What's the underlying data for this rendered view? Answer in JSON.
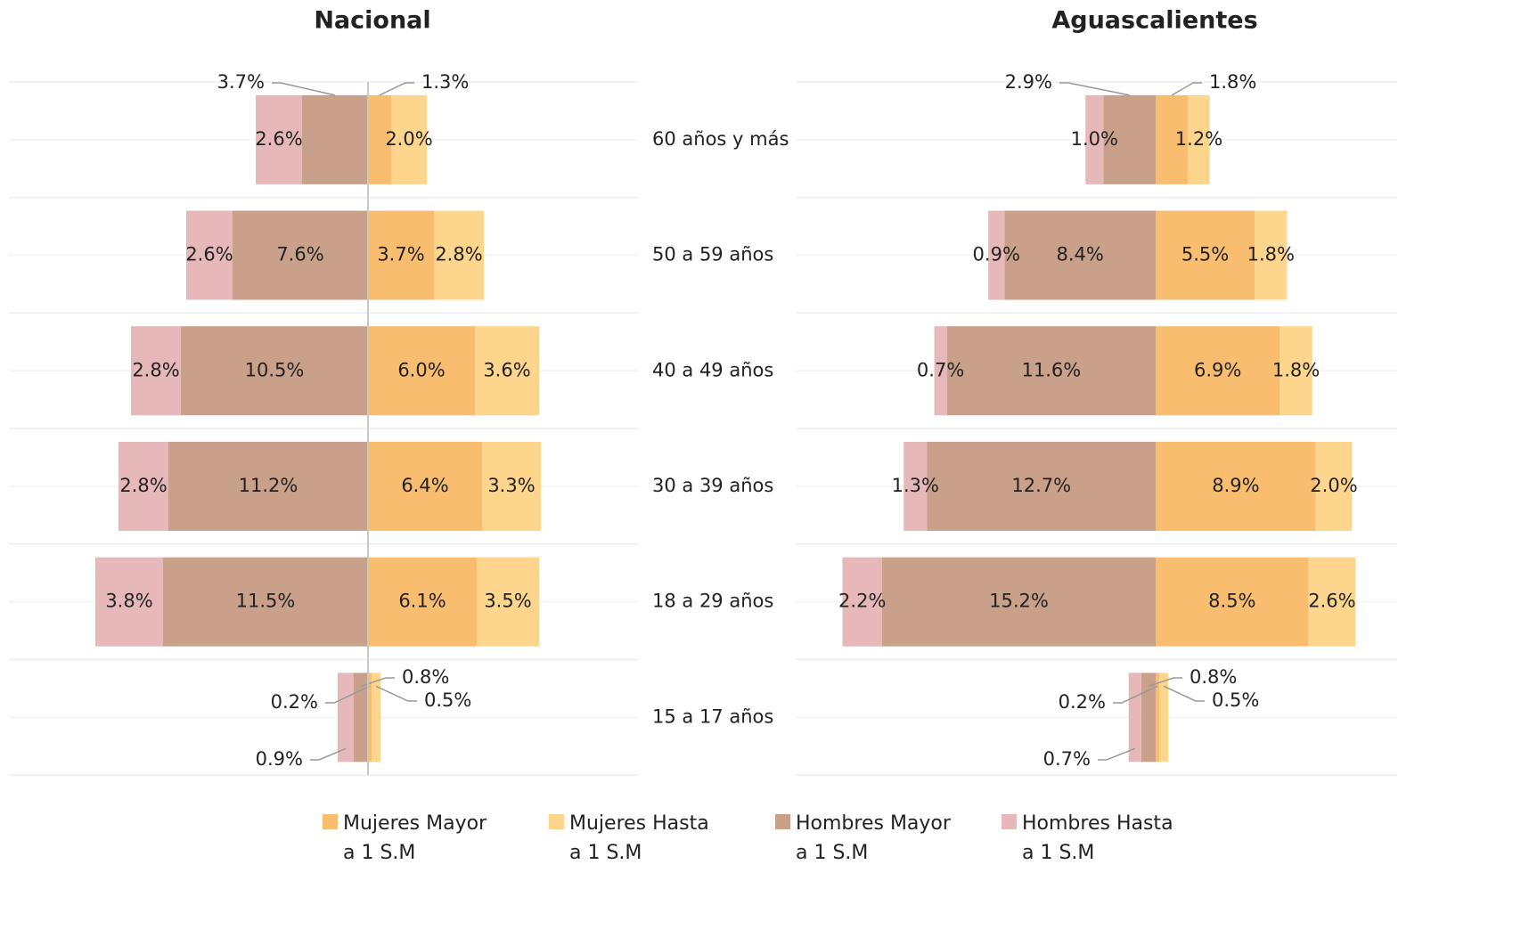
{
  "categories": [
    "60 años y más",
    "50 a 59 años",
    "40 a 49 años",
    "30 a 39 años",
    "18 a 29 años",
    "15 a 17 años"
  ],
  "chart_data": [
    {
      "type": "bar",
      "title": "Nacional",
      "series": [
        {
          "name": "Mujeres Mayor a 1 S.M",
          "color": "#f9bd6f",
          "values": [
            1.3,
            3.7,
            6.0,
            6.4,
            6.1,
            0.2
          ]
        },
        {
          "name": "Mujeres Hasta a 1 S.M",
          "color": "#fdd58c",
          "values": [
            2.0,
            2.8,
            3.6,
            3.3,
            3.5,
            0.5
          ]
        },
        {
          "name": "Hombres Mayor a 1 S.M",
          "color": "#c9a08a",
          "values": [
            3.7,
            7.6,
            10.5,
            11.2,
            11.5,
            0.8
          ]
        },
        {
          "name": "Hombres Hasta a 1 S.M",
          "color": "#e6b8b9",
          "values": [
            2.6,
            2.6,
            2.8,
            2.8,
            3.8,
            0.9
          ]
        }
      ]
    },
    {
      "type": "bar",
      "title": "Aguascalientes",
      "series": [
        {
          "color": "#f9bd6f",
          "values": [
            1.8,
            5.5,
            6.9,
            8.9,
            8.5,
            0.2
          ]
        },
        {
          "color": "#fdd58c",
          "values": [
            1.2,
            1.8,
            1.8,
            2.0,
            2.6,
            0.5
          ]
        },
        {
          "color": "#c9a08a",
          "values": [
            2.9,
            8.4,
            11.6,
            12.7,
            15.2,
            0.8
          ]
        },
        {
          "color": "#e6b8b9",
          "values": [
            1.0,
            0.9,
            0.7,
            1.3,
            2.2,
            0.7
          ]
        }
      ]
    }
  ]
}
